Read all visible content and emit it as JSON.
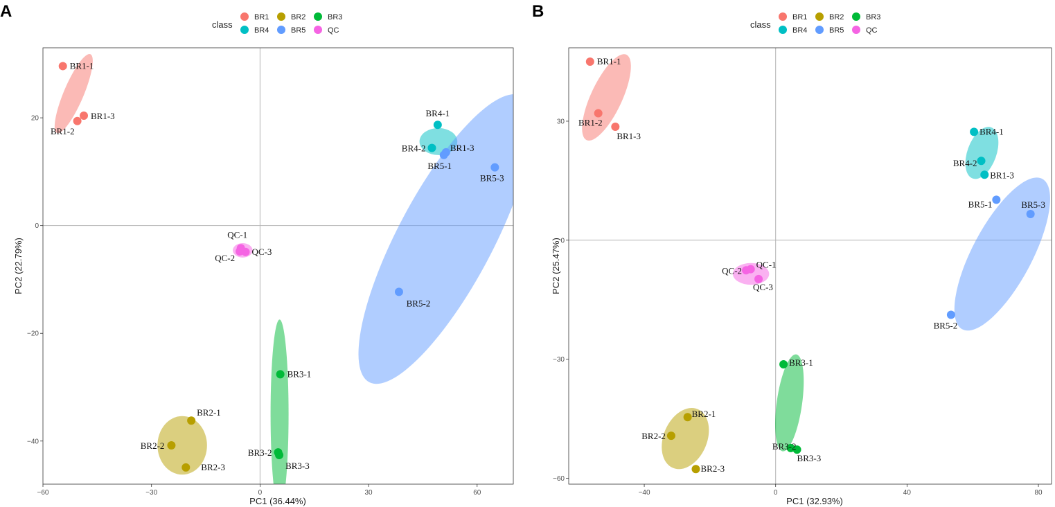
{
  "chart_data": [
    {
      "panel_label": "A",
      "type": "scatter",
      "legend_title": "class",
      "classes": [
        {
          "name": "BR1",
          "color": "#F8766D"
        },
        {
          "name": "BR2",
          "color": "#B79F00"
        },
        {
          "name": "BR3",
          "color": "#00BA38"
        },
        {
          "name": "BR4",
          "color": "#00BFC4"
        },
        {
          "name": "BR5",
          "color": "#619CFF"
        },
        {
          "name": "QC",
          "color": "#F564E3"
        }
      ],
      "xlabel": "PC1 (36.44%)",
      "ylabel": "PC2 (22.79%)",
      "xlim": [
        -60,
        70
      ],
      "ylim": [
        -48,
        33
      ],
      "xticks": [
        -60,
        -30,
        0,
        30,
        60
      ],
      "yticks": [
        -40,
        -20,
        0,
        20
      ],
      "xtick_labels": [
        "−60",
        "−30",
        "0",
        "30",
        "60"
      ],
      "ytick_labels": [
        "−40",
        "−20",
        "0",
        "20"
      ],
      "ellipses": [
        {
          "cls": "BR1",
          "cx": -51.5,
          "cy": 24.5,
          "a": 9.5,
          "b": 2.2,
          "angle": 67
        },
        {
          "cls": "BR4",
          "cx": 49.3,
          "cy": 15.6,
          "a": 4.2,
          "b": 3.0,
          "angle": 0
        },
        {
          "cls": "BR5",
          "cx": 51.2,
          "cy": -2.5,
          "a": 36.0,
          "b": 10.5,
          "angle": 62
        },
        {
          "cls": "QC",
          "cx": -4.8,
          "cy": -4.6,
          "a": 2.2,
          "b": 1.6,
          "angle": 0
        },
        {
          "cls": "BR3",
          "cx": 5.4,
          "cy": -35.0,
          "a": 21.0,
          "b": 2.0,
          "angle": 90
        },
        {
          "cls": "BR2",
          "cx": -21.5,
          "cy": -40.8,
          "a": 6.5,
          "b": 5.5,
          "angle": 90
        }
      ],
      "points": [
        {
          "label": "BR1-1",
          "cls": "BR1",
          "x": -54.5,
          "y": 29.6,
          "anchor": "start",
          "dx": 10,
          "dy": 4
        },
        {
          "label": "BR1-2",
          "cls": "BR1",
          "x": -50.5,
          "y": 19.4,
          "anchor": "end",
          "dx": -4,
          "dy": 19
        },
        {
          "label": "BR1-3",
          "cls": "BR1",
          "x": -48.7,
          "y": 20.4,
          "anchor": "start",
          "dx": 10,
          "dy": 5
        },
        {
          "label": "BR4-1",
          "cls": "BR4",
          "x": 49.1,
          "y": 18.7,
          "anchor": "middle",
          "dx": 0,
          "dy": -12
        },
        {
          "label": "BR4-2",
          "cls": "BR4",
          "x": 47.5,
          "y": 14.4,
          "anchor": "end",
          "dx": -9,
          "dy": 5
        },
        {
          "label": "BR1-3",
          "cls": "BR5",
          "x": 51.4,
          "y": 13.6,
          "anchor": "start",
          "dx": 6,
          "dy": -2
        },
        {
          "label": "BR5-1",
          "cls": "BR5",
          "x": 50.8,
          "y": 13.1,
          "anchor": "middle",
          "dx": -6,
          "dy": 20
        },
        {
          "label": "BR5-3",
          "cls": "BR5",
          "x": 64.9,
          "y": 10.8,
          "anchor": "middle",
          "dx": -4,
          "dy": 20
        },
        {
          "label": "BR5-2",
          "cls": "BR5",
          "x": 38.4,
          "y": -12.3,
          "anchor": "middle",
          "dx": 28,
          "dy": 21
        },
        {
          "label": "QC-1",
          "cls": "QC",
          "x": -5.3,
          "y": -4.2,
          "anchor": "middle",
          "dx": -5,
          "dy": -15
        },
        {
          "label": "QC-2",
          "cls": "QC",
          "x": -5.6,
          "y": -4.8,
          "anchor": "end",
          "dx": -7,
          "dy": 14
        },
        {
          "label": "QC-3",
          "cls": "QC",
          "x": -4.0,
          "y": -4.9,
          "anchor": "start",
          "dx": 9,
          "dy": 4
        },
        {
          "label": "BR3-1",
          "cls": "BR3",
          "x": 5.6,
          "y": -27.6,
          "anchor": "start",
          "dx": 10,
          "dy": 4
        },
        {
          "label": "BR3-2",
          "cls": "BR3",
          "x": 5.0,
          "y": -42.1,
          "anchor": "end",
          "dx": -9,
          "dy": 5
        },
        {
          "label": "BR3-3",
          "cls": "BR3",
          "x": 5.3,
          "y": -42.6,
          "anchor": "start",
          "dx": 9,
          "dy": 20
        },
        {
          "label": "BR2-1",
          "cls": "BR2",
          "x": -19.0,
          "y": -36.2,
          "anchor": "start",
          "dx": 8,
          "dy": -7
        },
        {
          "label": "BR2-2",
          "cls": "BR2",
          "x": -24.5,
          "y": -40.8,
          "anchor": "end",
          "dx": -10,
          "dy": 5
        },
        {
          "label": "BR2-3",
          "cls": "BR2",
          "x": -20.5,
          "y": -44.9,
          "anchor": "start",
          "dx": 22,
          "dy": 4
        }
      ]
    },
    {
      "panel_label": "B",
      "type": "scatter",
      "legend_title": "class",
      "classes": [
        {
          "name": "BR1",
          "color": "#F8766D"
        },
        {
          "name": "BR2",
          "color": "#B79F00"
        },
        {
          "name": "BR3",
          "color": "#00BA38"
        },
        {
          "name": "BR4",
          "color": "#00BFC4"
        },
        {
          "name": "BR5",
          "color": "#619CFF"
        },
        {
          "name": "QC",
          "color": "#F564E3"
        }
      ],
      "xlabel": "PC1 (32.93%)",
      "ylabel": "PC2 (25.47%)",
      "xlim": [
        -63,
        84
      ],
      "ylim": [
        -61.5,
        48.5
      ],
      "xticks": [
        -40,
        0,
        40,
        80
      ],
      "yticks": [
        -60,
        -30,
        0,
        30
      ],
      "xtick_labels": [
        "−40",
        "0",
        "40",
        "80"
      ],
      "ytick_labels": [
        "−60",
        "−30",
        "0",
        "30"
      ],
      "ellipses": [
        {
          "cls": "BR1",
          "cx": -51.5,
          "cy": 36.0,
          "a": 13.0,
          "b": 4.3,
          "angle": 65
        },
        {
          "cls": "BR4",
          "cx": 62.8,
          "cy": 22.0,
          "a": 7.5,
          "b": 4.0,
          "angle": 70
        },
        {
          "cls": "BR5",
          "cx": 69.0,
          "cy": -3.5,
          "a": 23.5,
          "b": 8.2,
          "angle": 62
        },
        {
          "cls": "QC",
          "cx": -7.5,
          "cy": -8.5,
          "a": 5.0,
          "b": 3.0,
          "angle": 0
        },
        {
          "cls": "BR3",
          "cx": 4.2,
          "cy": -41.0,
          "a": 13.5,
          "b": 3.5,
          "angle": 82
        },
        {
          "cls": "BR2",
          "cx": -27.5,
          "cy": -50.0,
          "a": 8.8,
          "b": 6.0,
          "angle": 67
        }
      ],
      "points": [
        {
          "label": "BR1-1",
          "cls": "BR1",
          "x": -56.5,
          "y": 45.0,
          "anchor": "start",
          "dx": 10,
          "dy": 4
        },
        {
          "label": "BR1-2",
          "cls": "BR1",
          "x": -54.0,
          "y": 32.0,
          "anchor": "end",
          "dx": 6,
          "dy": 18
        },
        {
          "label": "BR1-3",
          "cls": "BR1",
          "x": -48.8,
          "y": 28.6,
          "anchor": "start",
          "dx": 2,
          "dy": 18
        },
        {
          "label": "BR4-1",
          "cls": "BR4",
          "x": 60.4,
          "y": 27.3,
          "anchor": "start",
          "dx": 8,
          "dy": 4
        },
        {
          "label": "BR4-2",
          "cls": "BR4",
          "x": 62.6,
          "y": 20.0,
          "anchor": "end",
          "dx": -6,
          "dy": 8
        },
        {
          "label": "BR1-3",
          "cls": "BR4",
          "x": 63.6,
          "y": 16.5,
          "anchor": "start",
          "dx": 8,
          "dy": 5
        },
        {
          "label": "BR5-1",
          "cls": "BR5",
          "x": 67.2,
          "y": 10.2,
          "anchor": "end",
          "dx": -6,
          "dy": 11
        },
        {
          "label": "BR5-3",
          "cls": "BR5",
          "x": 77.6,
          "y": 6.6,
          "anchor": "middle",
          "dx": 4,
          "dy": -9
        },
        {
          "label": "BR5-2",
          "cls": "BR5",
          "x": 53.4,
          "y": -18.8,
          "anchor": "middle",
          "dx": -8,
          "dy": 20
        },
        {
          "label": "QC-1",
          "cls": "QC",
          "x": -7.6,
          "y": -7.3,
          "anchor": "start",
          "dx": 8,
          "dy": -2
        },
        {
          "label": "QC-2",
          "cls": "QC",
          "x": -9.0,
          "y": -7.6,
          "anchor": "end",
          "dx": -6,
          "dy": 5
        },
        {
          "label": "QC-3",
          "cls": "QC",
          "x": -5.2,
          "y": -9.8,
          "anchor": "start",
          "dx": -8,
          "dy": 16
        },
        {
          "label": "BR3-1",
          "cls": "BR3",
          "x": 2.4,
          "y": -31.3,
          "anchor": "start",
          "dx": 8,
          "dy": 2
        },
        {
          "label": "BR3-2",
          "cls": "BR3",
          "x": 4.6,
          "y": -52.4,
          "anchor": "end",
          "dx": 8,
          "dy": 2
        },
        {
          "label": "BR3-3",
          "cls": "BR3",
          "x": 6.5,
          "y": -52.8,
          "anchor": "start",
          "dx": 0,
          "dy": 17
        },
        {
          "label": "BR2-1",
          "cls": "BR2",
          "x": -26.8,
          "y": -44.6,
          "anchor": "start",
          "dx": 6,
          "dy": 0
        },
        {
          "label": "BR2-2",
          "cls": "BR2",
          "x": -31.8,
          "y": -49.3,
          "anchor": "end",
          "dx": -8,
          "dy": 5
        },
        {
          "label": "BR2-3",
          "cls": "BR2",
          "x": -24.3,
          "y": -57.7,
          "anchor": "start",
          "dx": 7,
          "dy": 4
        }
      ]
    }
  ]
}
